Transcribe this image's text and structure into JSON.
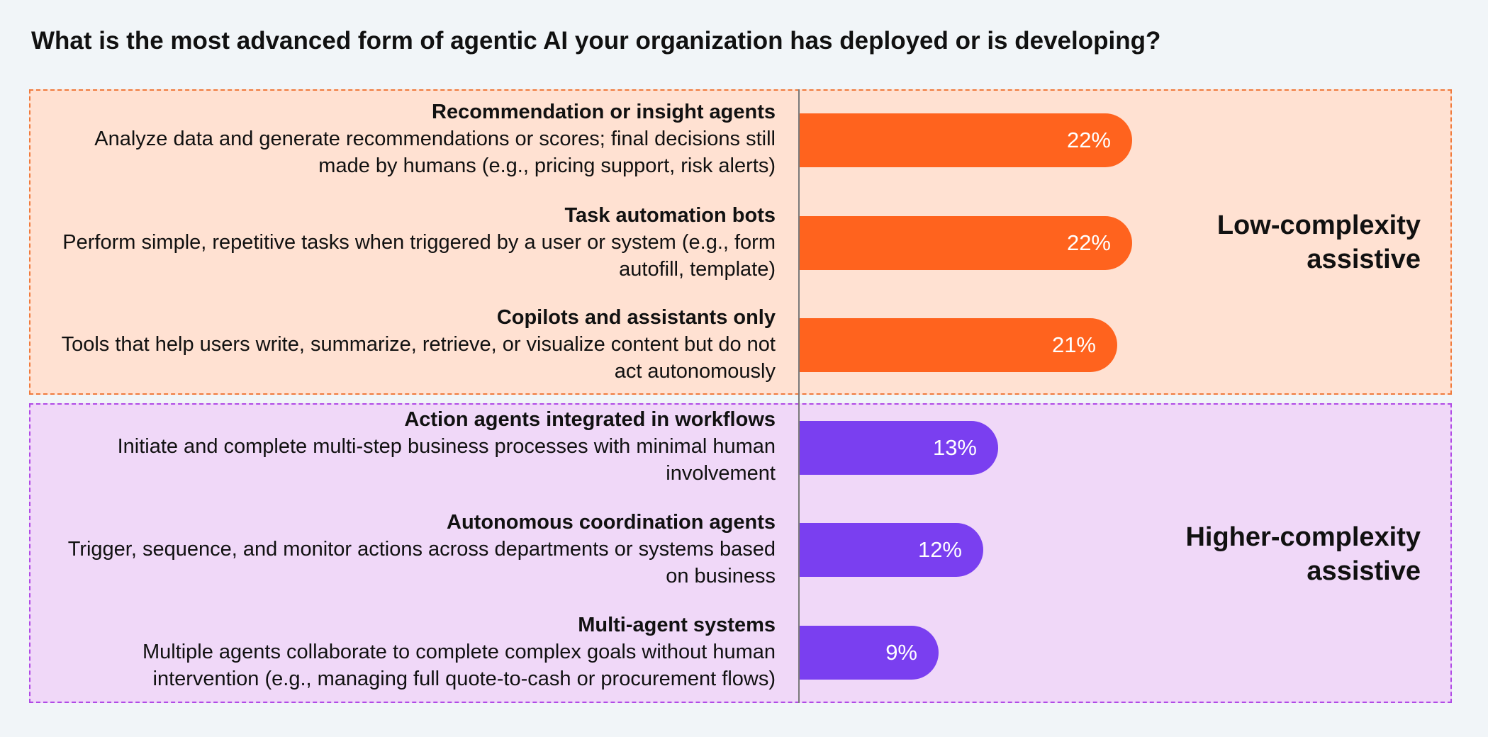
{
  "chart_data": {
    "type": "bar",
    "orientation": "horizontal",
    "title": "What is the most advanced form of agentic AI your organization has deployed or is developing?",
    "unit": "%",
    "xlim": [
      0,
      100
    ],
    "categories": [
      {
        "name": "Recommendation or insight agents",
        "description": "Analyze data and generate recommendations or scores; final decisions still made by humans (e.g., pricing support, risk alerts)",
        "value": 22,
        "label": "22%",
        "group": 0
      },
      {
        "name": "Task automation bots",
        "description": "Perform simple, repetitive tasks when triggered by a user or system (e.g., form autofill, template)",
        "value": 22,
        "label": "22%",
        "group": 0
      },
      {
        "name": "Copilots and assistants only",
        "description": "Tools that help users write, summarize, retrieve, or visualize content but do not act autonomously",
        "value": 21,
        "label": "21%",
        "group": 0
      },
      {
        "name": "Action agents integrated in workflows",
        "description": "Initiate and complete multi-step business processes with minimal human involvement",
        "value": 13,
        "label": "13%",
        "group": 1
      },
      {
        "name": "Autonomous coordination agents",
        "description": "Trigger, sequence, and monitor actions across departments or systems based on business",
        "value": 12,
        "label": "12%",
        "group": 1
      },
      {
        "name": "Multi-agent systems",
        "description": "Multiple agents collaborate to complete complex goals without human intervention (e.g., managing full quote-to-cash or procurement flows)",
        "value": 9,
        "label": "9%",
        "group": 1
      }
    ],
    "groups": [
      {
        "name_line1": "Low-complexity",
        "name_line2": "assistive",
        "bar_color": "#ff631e",
        "fill_color": "#ffe1d2",
        "border_color": "#f07a3c"
      },
      {
        "name_line1": "Higher-complexity",
        "name_line2": "assistive",
        "bar_color": "#7a3ff0",
        "fill_color": "#f0d8f8",
        "border_color": "#b04ae6"
      }
    ]
  }
}
